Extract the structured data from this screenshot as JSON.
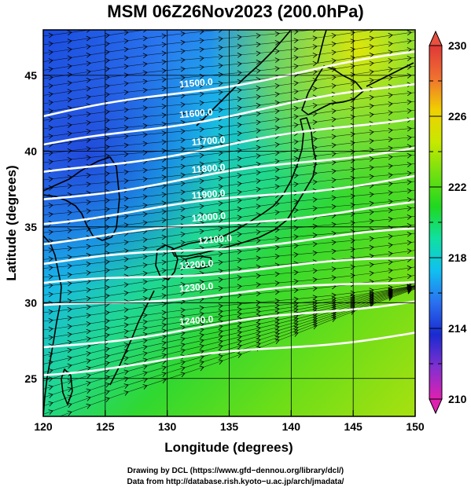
{
  "title": "MSM 06Z26Nov2023 (200.0hPa)",
  "map": {
    "xlabel": "Longitude (degrees)",
    "ylabel": "Latitude  (degrees)",
    "xlim": [
      120,
      150
    ],
    "ylim": [
      22.5,
      48
    ],
    "xticks": [
      "120",
      "125",
      "130",
      "135",
      "140",
      "145",
      "150"
    ],
    "yticks": [
      "25",
      "30",
      "35",
      "40",
      "45"
    ],
    "contours": [
      {
        "label": "11500.0",
        "lat_w": 42.3,
        "lat_e": 46.5,
        "label_lon": 131.0
      },
      {
        "label": "11600.0",
        "lat_w": 40.3,
        "lat_e": 44.5,
        "label_lon": 131.0
      },
      {
        "label": "11700.0",
        "lat_w": 38.5,
        "lat_e": 42.3,
        "label_lon": 132.0
      },
      {
        "label": "11800.0",
        "lat_w": 36.8,
        "lat_e": 40.3,
        "label_lon": 132.0
      },
      {
        "label": "11900.0",
        "lat_w": 35.3,
        "lat_e": 38.3,
        "label_lon": 132.0
      },
      {
        "label": "12000.0",
        "lat_w": 34.0,
        "lat_e": 36.5,
        "label_lon": 132.0
      },
      {
        "label": "12100.0",
        "lat_w": 32.6,
        "lat_e": 34.8,
        "label_lon": 132.5
      },
      {
        "label": "12200.0",
        "lat_w": 31.2,
        "lat_e": 33.0,
        "label_lon": 131.0
      },
      {
        "label": "12300.0",
        "lat_w": 29.7,
        "lat_e": 31.5,
        "label_lon": 131.0
      },
      {
        "label": "12400.0",
        "lat_w": 27.0,
        "lat_e": 30.2,
        "label_lon": 131.0
      },
      {
        "label": "",
        "lat_w": 25.3,
        "lat_e": 28.0,
        "label_lon": 131.0
      }
    ]
  },
  "colorbar": {
    "min": 210,
    "max": 230,
    "ticks": [
      "210",
      "214",
      "218",
      "222",
      "226",
      "230"
    ],
    "colors": [
      "#e020b0",
      "#8030d0",
      "#1a2ad0",
      "#2a70f0",
      "#10c0f0",
      "#10e0a0",
      "#20d820",
      "#70e010",
      "#c8e800",
      "#f0d000",
      "#f07030",
      "#e03838"
    ]
  },
  "credits": {
    "line1": "Drawing by DCL (https://www.gfd−dennou.org/library/dcl/)",
    "line2": "Data from http://database.rish.kyoto−u.ac.jp/arch/jmadata/"
  }
}
